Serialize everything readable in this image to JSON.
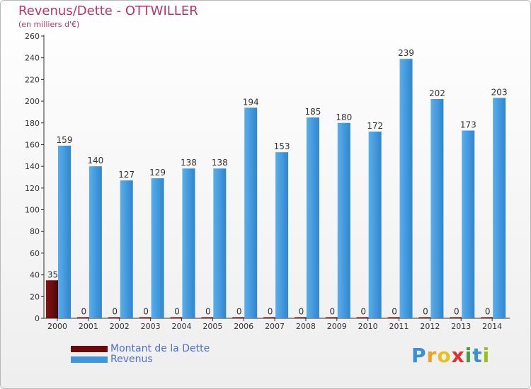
{
  "chart_data": {
    "type": "bar",
    "title": "Revenus/Dette - OTTWILLER",
    "subtitle": "(en milliers d'€)",
    "categories": [
      "2000",
      "2001",
      "2002",
      "2003",
      "2004",
      "2005",
      "2006",
      "2007",
      "2008",
      "2009",
      "2010",
      "2011",
      "2012",
      "2013",
      "2014"
    ],
    "series": [
      {
        "name": "Montant de la Dette",
        "color": "#6b0a0a",
        "values": [
          35,
          0,
          0,
          0,
          0,
          0,
          0,
          0,
          0,
          0,
          0,
          0,
          0,
          0,
          0
        ]
      },
      {
        "name": "Revenus",
        "color": "#3f96dd",
        "values": [
          159,
          140,
          127,
          129,
          138,
          138,
          194,
          153,
          185,
          180,
          172,
          239,
          202,
          173,
          203
        ]
      }
    ],
    "ylim": [
      0,
      260
    ],
    "yticks": [
      0,
      20,
      40,
      60,
      80,
      100,
      120,
      140,
      160,
      180,
      200,
      220,
      240,
      260
    ],
    "grid": false,
    "legend": "bottom-left"
  },
  "logo": {
    "letters": [
      "P",
      "r",
      "o",
      "x",
      "i",
      "t",
      "i"
    ]
  }
}
